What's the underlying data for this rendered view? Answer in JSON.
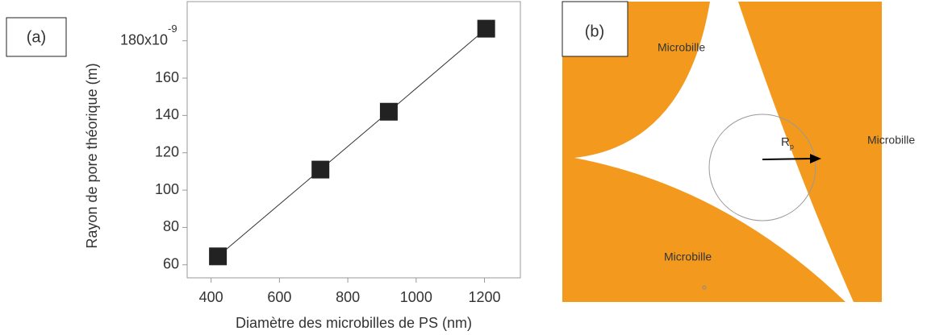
{
  "chart_data": {
    "type": "line",
    "panel_label": "(a)",
    "x_label": "Diamètre des microbilles de PS (nm)",
    "y_label": "Rayon de pore théorique (m)",
    "x": [
      420,
      720,
      920,
      1205
    ],
    "values": [
      64.5,
      111,
      142,
      186.5
    ],
    "color": "#222222",
    "marker": "square",
    "xlim": [
      330,
      1305
    ],
    "ylim": [
      53,
      201
    ],
    "xticks": [
      400,
      600,
      800,
      1000,
      1200
    ],
    "yticks": [
      60,
      80,
      100,
      120,
      140,
      160,
      {
        "value": 180,
        "label": "180x10"
      }
    ],
    "y_tick_exponent": "-9"
  },
  "diagram": {
    "panel_label": "(b)",
    "labels": [
      "Microbille",
      "Microbille",
      "Microbille"
    ],
    "radius_label": "R",
    "radius_subscript": "p"
  }
}
